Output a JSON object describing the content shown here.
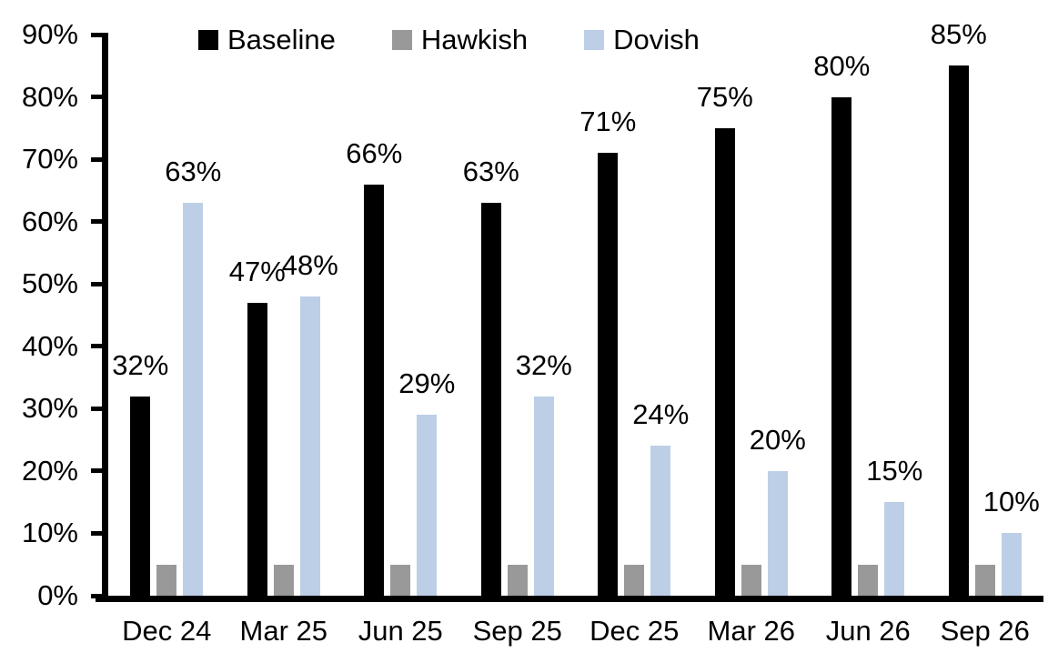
{
  "chart_data": {
    "type": "bar",
    "title": "",
    "categories": [
      "Dec 24",
      "Mar 25",
      "Jun 25",
      "Sep 25",
      "Dec 25",
      "Mar 26",
      "Jun 26",
      "Sep 26"
    ],
    "series": [
      {
        "name": "Baseline",
        "color": "#000000",
        "values": [
          32,
          47,
          66,
          63,
          71,
          75,
          80,
          85
        ],
        "labels": [
          "32%",
          "47%",
          "66%",
          "63%",
          "71%",
          "75%",
          "80%",
          "85%"
        ]
      },
      {
        "name": "Hawkish",
        "color": "#999999",
        "values": [
          5,
          5,
          5,
          5,
          5,
          5,
          5,
          5
        ],
        "labels": [
          "",
          "",
          "",
          "",
          "",
          "",
          "",
          ""
        ]
      },
      {
        "name": "Dovish",
        "color": "#bdcfe6",
        "values": [
          63,
          48,
          29,
          32,
          24,
          20,
          15,
          10
        ],
        "labels": [
          "63%",
          "48%",
          "29%",
          "32%",
          "24%",
          "20%",
          "15%",
          "10%"
        ]
      }
    ],
    "y_axis": {
      "min": 0,
      "max": 90,
      "tick_step": 10,
      "tick_labels": [
        "0%",
        "10%",
        "20%",
        "30%",
        "40%",
        "50%",
        "60%",
        "70%",
        "80%",
        "90%"
      ]
    },
    "legend": {
      "position": "top",
      "items": [
        "Baseline",
        "Hawkish",
        "Dovish"
      ]
    },
    "grid": false,
    "background": "#ffffff",
    "axis_color": "#000000"
  }
}
